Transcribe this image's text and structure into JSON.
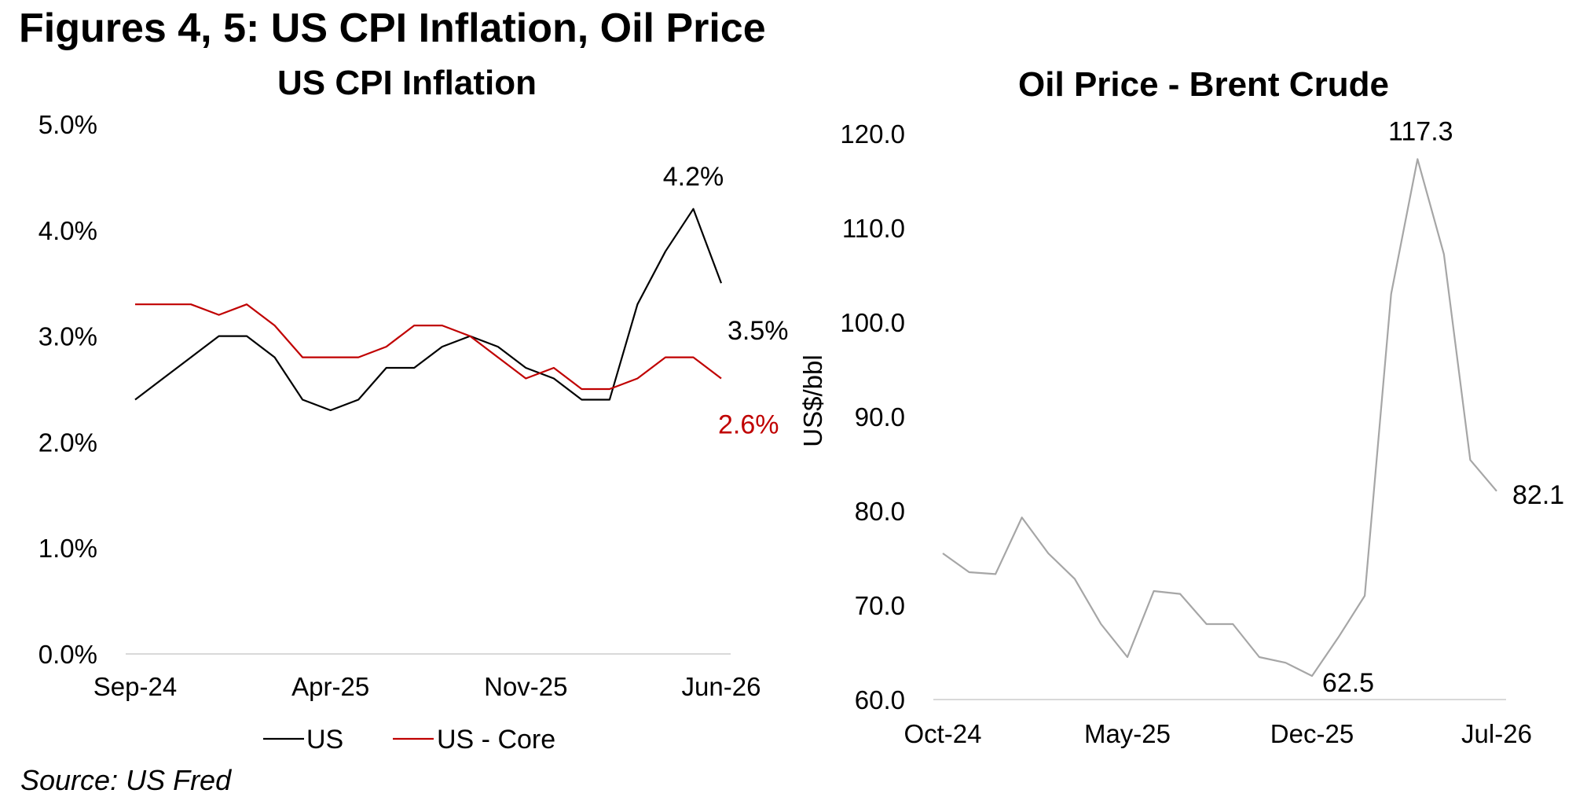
{
  "figure_title": "Figures 4, 5: US CPI Inflation, Oil Price",
  "source": "Source: US Fred",
  "colors": {
    "us": "#000000",
    "core": "#c00000",
    "oil": "#a6a6a6",
    "axis": "#d9d9d9"
  },
  "chart_data": [
    {
      "type": "line",
      "title": "US CPI Inflation",
      "xlabel": "",
      "ylabel": "",
      "x": [
        "Sep-24",
        "Oct-24",
        "Nov-24",
        "Dec-24",
        "Jan-25",
        "Feb-25",
        "Mar-25",
        "Apr-25",
        "May-25",
        "Jun-25",
        "Jul-25",
        "Aug-25",
        "Sep-25",
        "Oct-25",
        "Nov-25",
        "Dec-25",
        "Jan-26",
        "Feb-26",
        "Mar-26",
        "Apr-26",
        "May-26",
        "Jun-26"
      ],
      "x_tick_labels": [
        "Sep-24",
        "Apr-25",
        "Nov-25",
        "Jun-26"
      ],
      "y_tick_labels": [
        "0.0%",
        "1.0%",
        "2.0%",
        "3.0%",
        "4.0%",
        "5.0%"
      ],
      "ylim": [
        0,
        5
      ],
      "grid": false,
      "legend": "bottom",
      "series": [
        {
          "name": "US",
          "values": [
            2.4,
            2.6,
            2.8,
            3.0,
            3.0,
            2.8,
            2.4,
            2.3,
            2.4,
            2.7,
            2.7,
            2.9,
            3.0,
            2.9,
            2.7,
            2.6,
            2.4,
            2.4,
            3.3,
            3.8,
            4.2,
            3.5
          ]
        },
        {
          "name": "US - Core",
          "values": [
            3.3,
            3.3,
            3.3,
            3.2,
            3.3,
            3.1,
            2.8,
            2.8,
            2.8,
            2.9,
            3.1,
            3.1,
            3.0,
            2.8,
            2.6,
            2.7,
            2.5,
            2.5,
            2.6,
            2.8,
            2.8,
            2.6
          ]
        }
      ],
      "annotations": [
        {
          "text": "4.2%",
          "series": "US",
          "x": "May-26",
          "y": 4.2
        },
        {
          "text": "3.5%",
          "series": "US",
          "x": "Jun-26",
          "y": 3.5
        },
        {
          "text": "2.6%",
          "series": "US - Core",
          "x": "Jun-26",
          "y": 2.6
        }
      ]
    },
    {
      "type": "line",
      "title": "Oil Price - Brent Crude",
      "xlabel": "",
      "ylabel": "US$/bbl",
      "x": [
        "Oct-24",
        "Nov-24",
        "Dec-24",
        "Jan-25",
        "Feb-25",
        "Mar-25",
        "Apr-25",
        "May-25",
        "Jun-25",
        "Jul-25",
        "Aug-25",
        "Sep-25",
        "Oct-25",
        "Nov-25",
        "Dec-25",
        "Jan-26",
        "Feb-26",
        "Mar-26",
        "Apr-26",
        "May-26",
        "Jun-26",
        "Jul-26"
      ],
      "x_tick_labels": [
        "Oct-24",
        "May-25",
        "Dec-25",
        "Jul-26"
      ],
      "y_tick_labels": [
        "60.0",
        "70.0",
        "80.0",
        "90.0",
        "100.0",
        "110.0",
        "120.0"
      ],
      "ylim": [
        60,
        120
      ],
      "grid": false,
      "legend": "none",
      "series": [
        {
          "name": "",
          "values": [
            75.5,
            73.5,
            73.3,
            79.3,
            75.5,
            72.8,
            68.0,
            64.5,
            71.5,
            71.2,
            68.0,
            68.0,
            64.5,
            63.9,
            62.5,
            66.6,
            71.0,
            103.0,
            117.3,
            107.2,
            85.4,
            82.1
          ]
        }
      ],
      "annotations": [
        {
          "text": "117.3",
          "x": "Apr-26",
          "y": 117.3
        },
        {
          "text": "62.5",
          "x": "Dec-25",
          "y": 62.5
        },
        {
          "text": "82.1",
          "x": "Jul-26",
          "y": 82.1
        }
      ]
    }
  ]
}
